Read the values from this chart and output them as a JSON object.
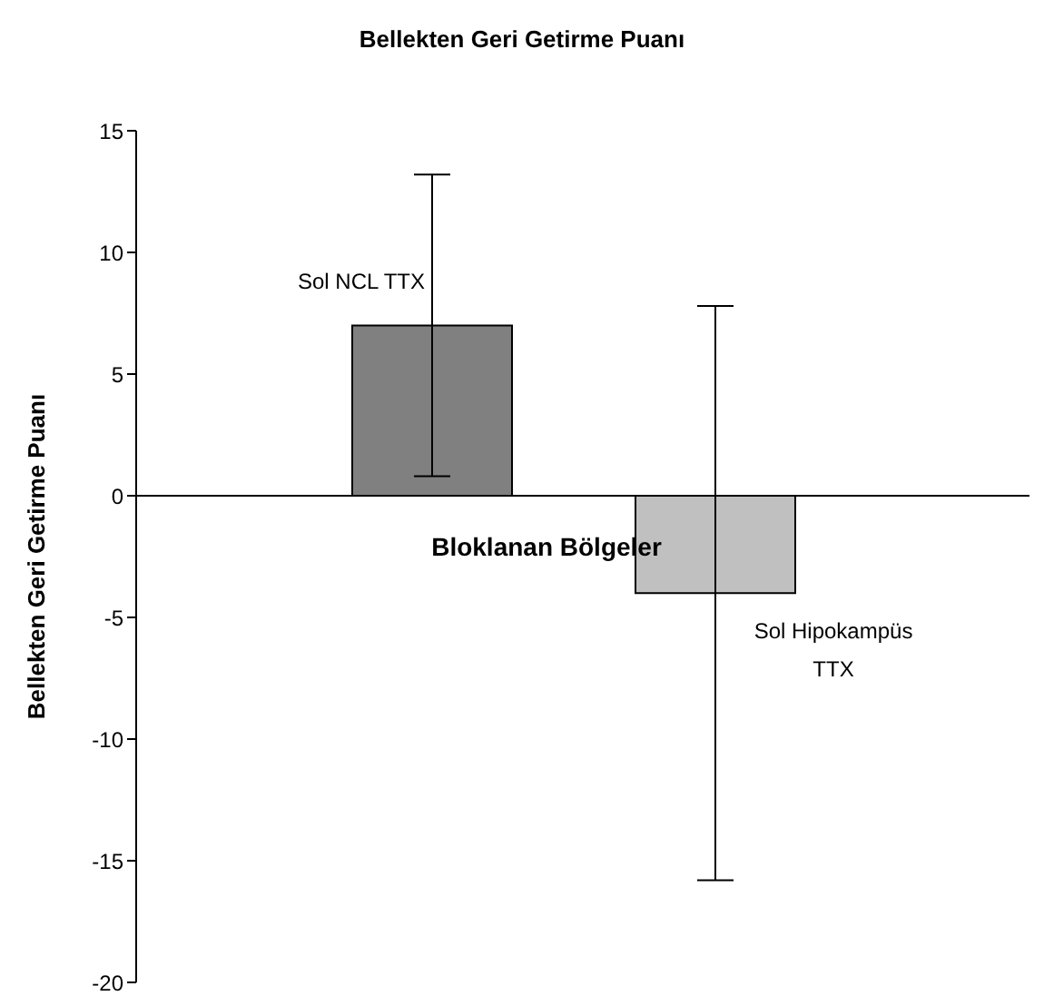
{
  "chart_data": {
    "type": "bar",
    "title": "Bellekten Geri Getirme Puanı",
    "xlabel": "Bloklanan Bölgeler",
    "ylabel": "Bellekten Geri Getirme Puanı",
    "categories": [
      "Sol NCL TTX",
      "Sol Hipokampüs TTX"
    ],
    "values": [
      7,
      -4
    ],
    "colors": [
      "#808080",
      "#c0c0c0"
    ],
    "errors": [
      6.2,
      11.8
    ],
    "ylim": [
      -20,
      15
    ],
    "yticks": [
      -20,
      -15,
      -10,
      -5,
      0,
      5,
      10,
      15
    ],
    "legend": false
  }
}
